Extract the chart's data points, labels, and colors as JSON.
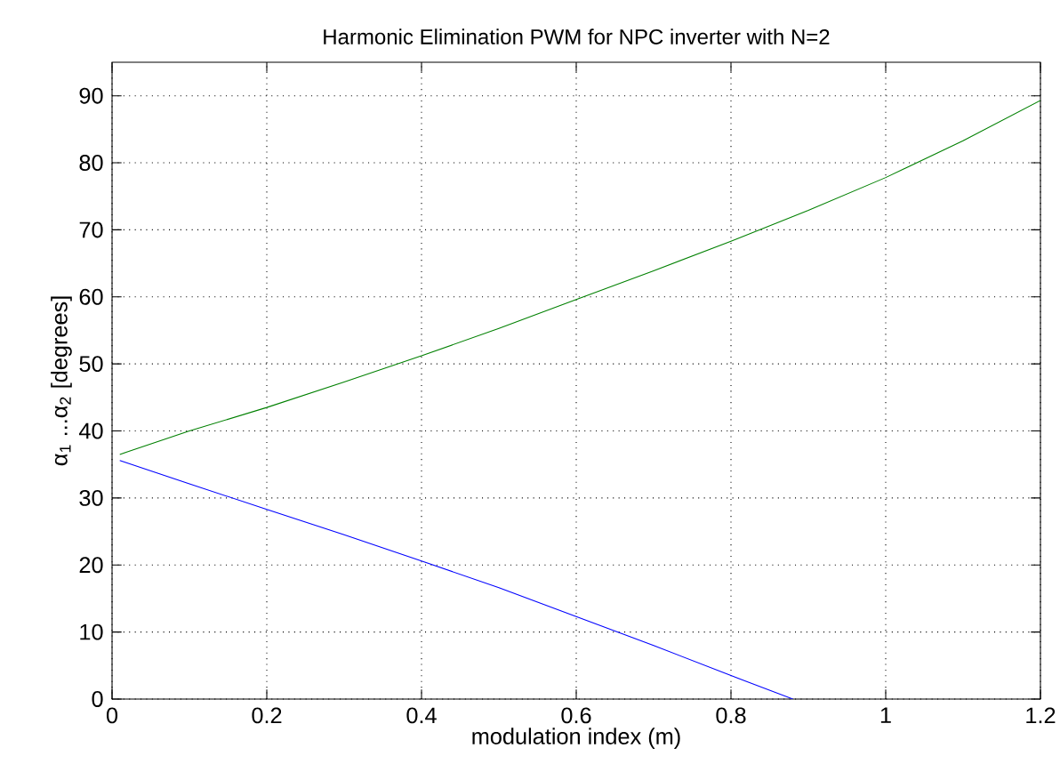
{
  "chart_data": {
    "type": "line",
    "title": "Harmonic Elimination PWM for NPC inverter with N=2",
    "xlabel": "modulation index (m)",
    "ylabel": "α$_{1}$ ...α$_{2}$ [degrees]",
    "xlim": [
      0,
      1.2
    ],
    "ylim": [
      0,
      95
    ],
    "xticks": [
      0,
      0.2,
      0.4,
      0.6,
      0.8,
      1,
      1.2
    ],
    "yticks": [
      0,
      10,
      20,
      30,
      40,
      50,
      60,
      70,
      80,
      90
    ],
    "grid": true,
    "line_style": "solid",
    "marker": "none",
    "series": [
      {
        "color": "#0000ff",
        "x": [
          0.01,
          0.1,
          0.2,
          0.3,
          0.4,
          0.5,
          0.6,
          0.7,
          0.8,
          0.88
        ],
        "values": [
          35.6,
          32.1,
          28.3,
          24.5,
          20.6,
          16.6,
          12.3,
          8.0,
          3.5,
          0
        ]
      },
      {
        "color": "#008000",
        "x": [
          0.01,
          0.1,
          0.2,
          0.3,
          0.4,
          0.5,
          0.6,
          0.7,
          0.8,
          0.9,
          1.0,
          1.1,
          1.2
        ],
        "values": [
          36.5,
          40.0,
          43.5,
          47.3,
          51.2,
          55.3,
          59.6,
          63.9,
          68.3,
          72.9,
          77.8,
          83.3,
          89.3
        ]
      }
    ]
  }
}
